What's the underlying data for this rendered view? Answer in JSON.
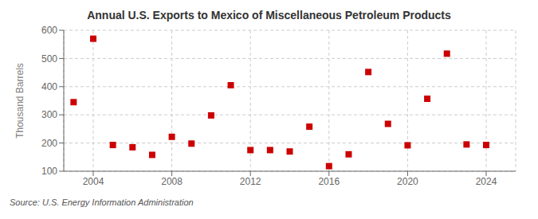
{
  "chart_data": {
    "type": "scatter",
    "title": "Annual U.S. Exports to Mexico of Miscellaneous Petroleum Products",
    "y_label": "Thousand Barrels",
    "annotation": "Source: U.S. Energy Information Administration",
    "x": [
      2003,
      2004,
      2005,
      2006,
      2007,
      2008,
      2009,
      2010,
      2011,
      2012,
      2013,
      2014,
      2015,
      2016,
      2017,
      2018,
      2019,
      2020,
      2021,
      2022,
      2023,
      2024
    ],
    "values": [
      345,
      570,
      193,
      185,
      158,
      222,
      198,
      298,
      405,
      175,
      175,
      170,
      258,
      118,
      160,
      452,
      268,
      192,
      357,
      517,
      195,
      193
    ],
    "color": "#cc0000",
    "marker": "square",
    "xlim": [
      2002.5,
      2025.5
    ],
    "xticks": [
      2004,
      2008,
      2012,
      2016,
      2020,
      2024
    ],
    "ylim": [
      100,
      600
    ],
    "yticks": [
      100,
      200,
      300,
      400,
      500,
      600
    ],
    "grid": true
  }
}
